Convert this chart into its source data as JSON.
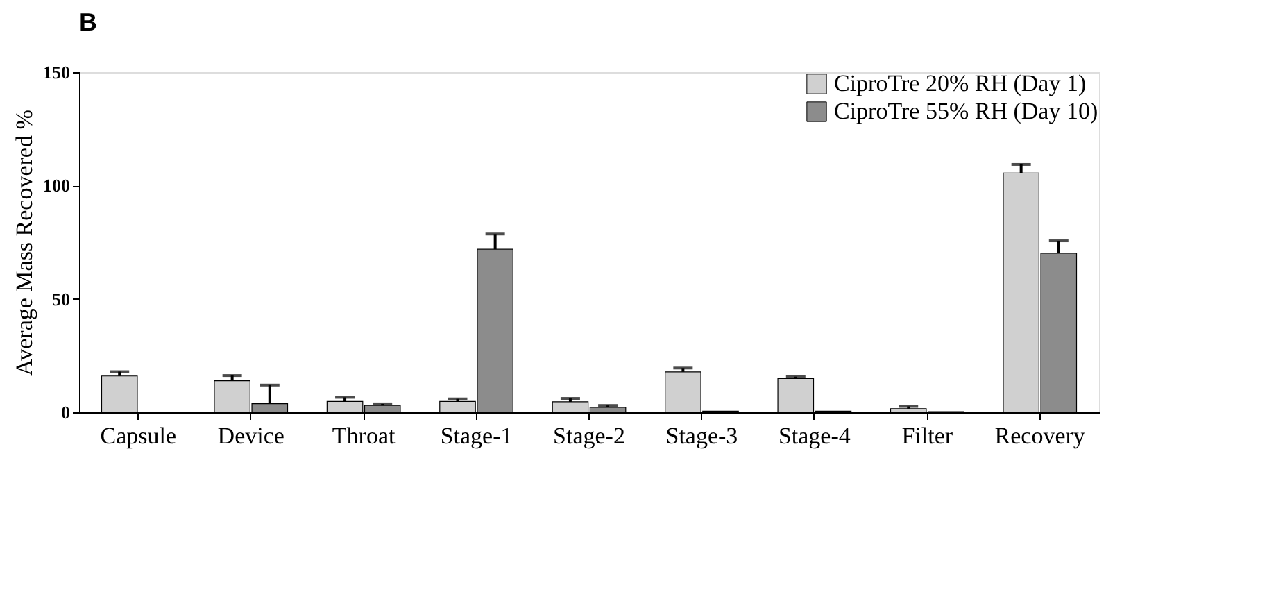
{
  "chart_data": {
    "type": "bar",
    "title": "B",
    "ylabel": "Average Mass Recovered %",
    "categories": [
      "Capsule",
      "Device",
      "Throat",
      "Stage-1",
      "Stage-2",
      "Stage-3",
      "Stage-4",
      "Filter",
      "Recovery"
    ],
    "series": [
      {
        "name": "CiproTre 20% RH (Day 1)",
        "color": "#d0d0d0",
        "values": [
          16.0,
          13.9,
          4.8,
          4.8,
          4.6,
          17.8,
          14.9,
          1.6,
          105.5
        ],
        "errors": [
          [
            16.0,
            17.9
          ],
          [
            13.9,
            16.2
          ],
          [
            4.8,
            6.6
          ],
          [
            4.8,
            5.9
          ],
          [
            4.6,
            6.1
          ],
          [
            17.8,
            19.5
          ],
          [
            14.9,
            15.7
          ],
          [
            1.6,
            2.6
          ],
          [
            105.5,
            109.3
          ]
        ]
      },
      {
        "name": "CiproTre 55% RH (Day 10)",
        "color": "#8c8c8c",
        "values": [
          null,
          3.8,
          3.0,
          71.9,
          2.2,
          0.5,
          0.5,
          0.3,
          70.1
        ],
        "errors": [
          null,
          [
            3.8,
            12.0
          ],
          [
            3.0,
            3.7
          ],
          [
            71.9,
            78.6
          ],
          [
            2.2,
            3.0
          ],
          null,
          null,
          null,
          [
            70.1,
            75.6
          ]
        ]
      }
    ],
    "ylim": [
      0,
      150
    ],
    "yticks": [
      0,
      50,
      100,
      150
    ],
    "grid": false,
    "legend": "top right"
  }
}
